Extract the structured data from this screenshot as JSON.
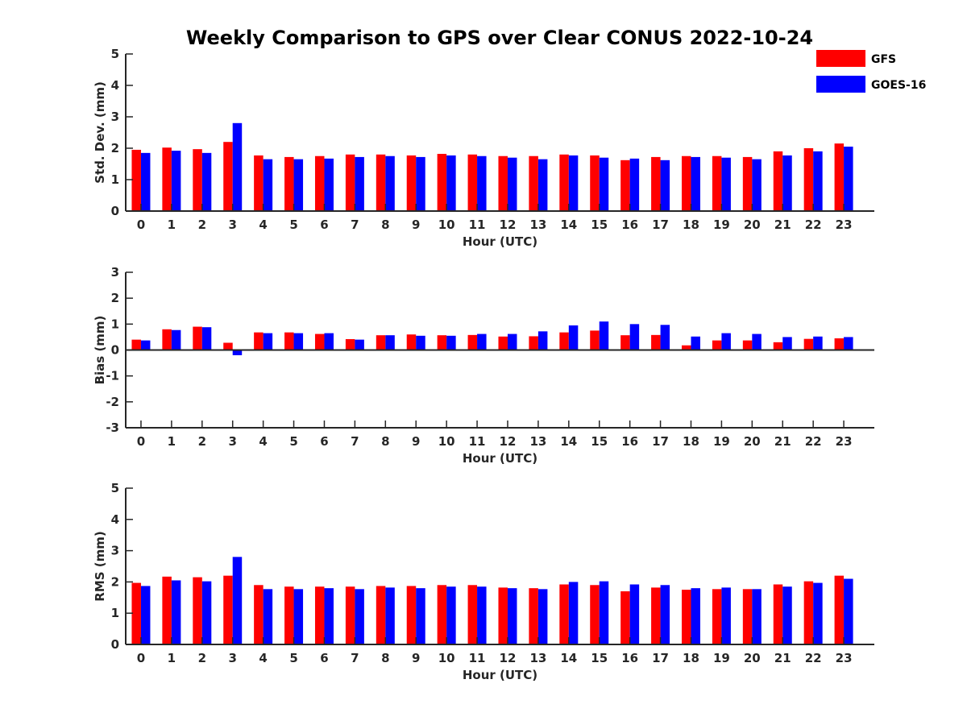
{
  "chart_data": {
    "type": "bar",
    "title": "Weekly Comparison to GPS over Clear CONUS 2022-10-24",
    "legend": {
      "placement": "top-right",
      "entries": [
        {
          "name": "GFS",
          "color": "#ff0000"
        },
        {
          "name": "GOES-16",
          "color": "#0000ff"
        }
      ]
    },
    "categories": [
      "0",
      "1",
      "2",
      "3",
      "4",
      "5",
      "6",
      "7",
      "8",
      "9",
      "10",
      "11",
      "12",
      "13",
      "14",
      "15",
      "16",
      "17",
      "18",
      "19",
      "20",
      "21",
      "22",
      "23"
    ],
    "panels": [
      {
        "ylabel": "Std. Dev. (mm)",
        "xlabel": "Hour (UTC)",
        "ylim": [
          0,
          5
        ],
        "yticks": [
          "0",
          "1",
          "2",
          "3",
          "4",
          "5"
        ],
        "series": [
          {
            "name": "GFS",
            "color": "#ff0000",
            "values": [
              1.95,
              2.02,
              1.97,
              2.2,
              1.77,
              1.72,
              1.75,
              1.8,
              1.8,
              1.77,
              1.82,
              1.8,
              1.75,
              1.75,
              1.8,
              1.77,
              1.62,
              1.72,
              1.75,
              1.75,
              1.72,
              1.9,
              2.0,
              2.15
            ]
          },
          {
            "name": "GOES-16",
            "color": "#0000ff",
            "values": [
              1.85,
              1.92,
              1.85,
              2.8,
              1.65,
              1.65,
              1.67,
              1.72,
              1.75,
              1.72,
              1.77,
              1.75,
              1.7,
              1.65,
              1.77,
              1.7,
              1.67,
              1.62,
              1.72,
              1.7,
              1.65,
              1.77,
              1.9,
              2.05
            ]
          }
        ]
      },
      {
        "ylabel": "Bias (mm)",
        "xlabel": "Hour (UTC)",
        "ylim": [
          -3,
          3
        ],
        "yticks": [
          "-3",
          "-2",
          "-1",
          "0",
          "1",
          "2",
          "3"
        ],
        "series": [
          {
            "name": "GFS",
            "color": "#ff0000",
            "values": [
              0.4,
              0.8,
              0.9,
              0.28,
              0.68,
              0.68,
              0.62,
              0.42,
              0.57,
              0.6,
              0.57,
              0.58,
              0.52,
              0.53,
              0.68,
              0.75,
              0.57,
              0.58,
              0.18,
              0.37,
              0.37,
              0.3,
              0.43,
              0.45
            ]
          },
          {
            "name": "GOES-16",
            "color": "#0000ff",
            "values": [
              0.37,
              0.77,
              0.88,
              -0.2,
              0.65,
              0.65,
              0.65,
              0.4,
              0.57,
              0.55,
              0.55,
              0.62,
              0.62,
              0.72,
              0.95,
              1.1,
              1.0,
              0.97,
              0.52,
              0.65,
              0.62,
              0.5,
              0.52,
              0.5
            ]
          }
        ]
      },
      {
        "ylabel": "RMS (mm)",
        "xlabel": "Hour (UTC)",
        "ylim": [
          0,
          5
        ],
        "yticks": [
          "0",
          "1",
          "2",
          "3",
          "4",
          "5"
        ],
        "series": [
          {
            "name": "GFS",
            "color": "#ff0000",
            "values": [
              1.97,
              2.17,
              2.15,
              2.2,
              1.9,
              1.85,
              1.85,
              1.85,
              1.87,
              1.87,
              1.9,
              1.9,
              1.82,
              1.8,
              1.92,
              1.9,
              1.7,
              1.82,
              1.75,
              1.77,
              1.77,
              1.92,
              2.02,
              2.2
            ]
          },
          {
            "name": "GOES-16",
            "color": "#0000ff",
            "values": [
              1.87,
              2.05,
              2.02,
              2.8,
              1.77,
              1.77,
              1.8,
              1.77,
              1.82,
              1.8,
              1.85,
              1.85,
              1.8,
              1.77,
              2.0,
              2.02,
              1.92,
              1.9,
              1.8,
              1.82,
              1.77,
              1.85,
              1.97,
              2.1
            ]
          }
        ]
      }
    ]
  }
}
